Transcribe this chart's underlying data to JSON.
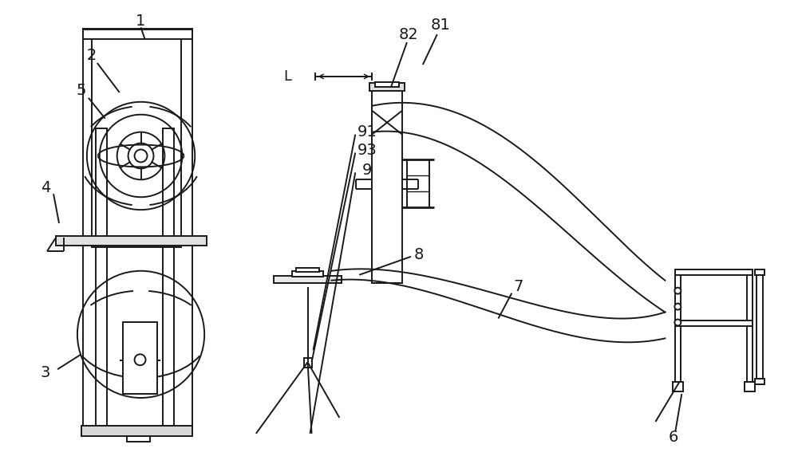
{
  "bg": "#ffffff",
  "lc": "#1a1a1a",
  "lw": 1.4,
  "fig_w": 10.0,
  "fig_h": 5.87
}
